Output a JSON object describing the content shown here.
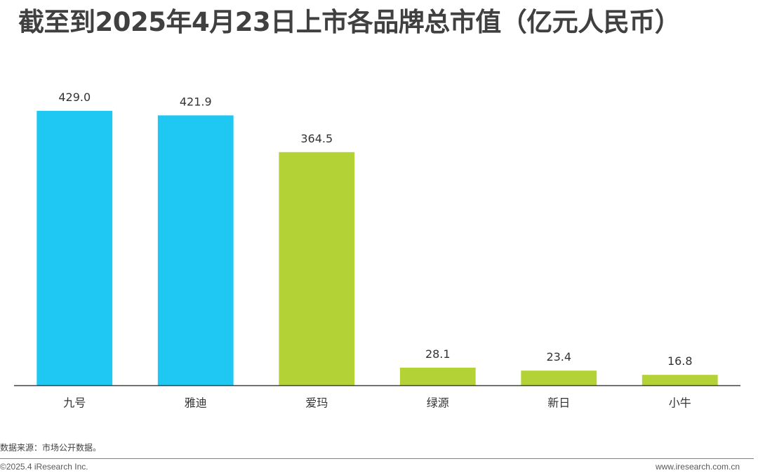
{
  "chart_data": {
    "type": "bar",
    "title": "截至到2025年4月23日上市各品牌总市值（亿元人民币）",
    "categories": [
      "九号",
      "雅迪",
      "爱玛",
      "绿源",
      "新日",
      "小牛"
    ],
    "values": [
      429.0,
      421.9,
      364.5,
      28.1,
      23.4,
      16.8
    ],
    "value_labels": [
      "429.0",
      "421.9",
      "364.5",
      "28.1",
      "23.4",
      "16.8"
    ],
    "bar_colors": [
      "#1FC8F2",
      "#1FC8F2",
      "#B2D235",
      "#B2D235",
      "#B2D235",
      "#B2D235"
    ],
    "ylim": [
      0,
      430
    ],
    "grid": false,
    "legend": "none"
  },
  "footer": {
    "source": "数据来源：市场公开数据。",
    "copyright": "©2025.4 iResearch Inc.",
    "website": "www.iresearch.com.cn"
  },
  "colors": {
    "primary_bar": "#1FC8F2",
    "secondary_bar": "#B2D235",
    "axis": "#404040"
  }
}
